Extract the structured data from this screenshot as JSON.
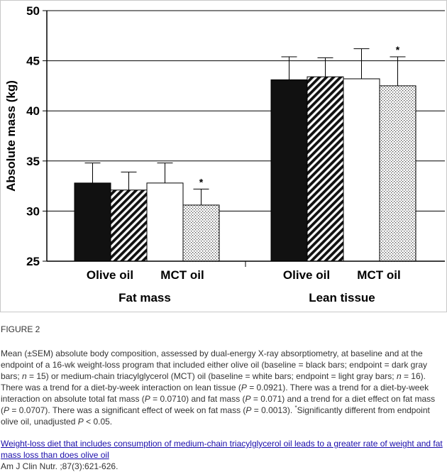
{
  "chart_data": {
    "type": "bar",
    "ylabel": "Absolute mass (kg)",
    "ylim": [
      25,
      50
    ],
    "yticks": [
      25,
      30,
      35,
      40,
      45,
      50
    ],
    "groups": [
      {
        "name": "Fat mass",
        "diet_labels": [
          "Olive oil",
          "MCT oil"
        ],
        "bars": [
          {
            "value": 32.8,
            "error": 2.0,
            "fill": "black",
            "star": ""
          },
          {
            "value": 32.1,
            "error": 1.8,
            "fill": "diagonal",
            "star": ""
          },
          {
            "value": 32.8,
            "error": 2.0,
            "fill": "white",
            "star": ""
          },
          {
            "value": 30.6,
            "error": 1.6,
            "fill": "dots",
            "star": "*"
          }
        ]
      },
      {
        "name": "Lean tissue",
        "diet_labels": [
          "Olive oil",
          "MCT oil"
        ],
        "bars": [
          {
            "value": 43.1,
            "error": 2.3,
            "fill": "black",
            "star": ""
          },
          {
            "value": 43.4,
            "error": 1.9,
            "fill": "diagonal",
            "star": ""
          },
          {
            "value": 43.2,
            "error": 3.0,
            "fill": "white",
            "star": ""
          },
          {
            "value": 42.5,
            "error": 2.9,
            "fill": "dots",
            "star": "*"
          }
        ]
      }
    ],
    "grid": true
  },
  "caption": {
    "label": "FIGURE 2",
    "desc_part1": "Mean (±SEM) absolute body composition, assessed by dual-energy X-ray absorptiometry, at baseline and at the endpoint of a 16-wk weight-loss program that included either olive oil (baseline = black bars; endpoint = dark gray bars; ",
    "n1": "n",
    "desc_part2": " = 15) or medium-chain triacylglycerol (MCT) oil (baseline = white bars; endpoint = light gray bars; ",
    "n2": "n",
    "desc_part3": " = 16). There was a trend for a diet-by-week interaction on lean tissue (",
    "p1": "P",
    "desc_part4": " = 0.0921). There was a trend for a diet-by-week interaction on absolute total fat mass (",
    "p2": "P",
    "desc_part5": " = 0.0710) and fat mass (",
    "p3": "P",
    "desc_part6": " = 0.071) and a trend for a diet effect on fat mass (",
    "p4": "P",
    "desc_part7": " = 0.0707). There was a significant effect of week on fat mass (",
    "p5": "P",
    "desc_part8": " = 0.0013). ",
    "star_sup": "*",
    "desc_part9": "Significantly different from endpoint olive oil, unadjusted ",
    "p6": "P",
    "desc_part10": " < 0.05.",
    "link_text": "Weight-loss diet that includes consumption of medium-chain triacylglycerol oil leads to a greater rate of weight and fat mass loss than does olive oil",
    "journal": "Am J Clin Nutr. ;87(3):621-626."
  }
}
